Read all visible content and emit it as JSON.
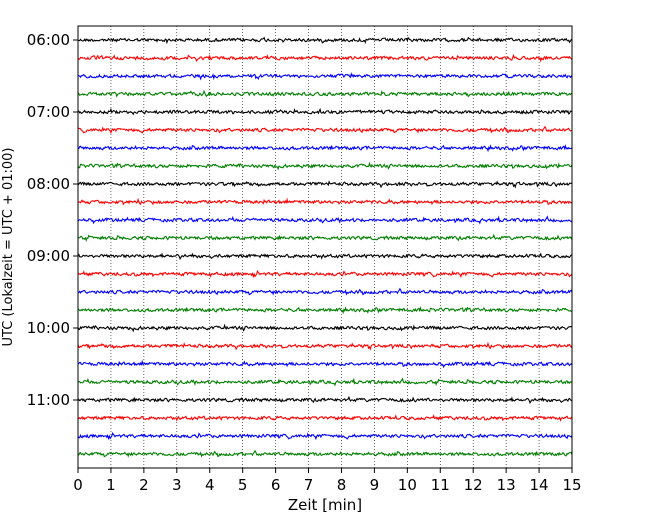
{
  "chart_data": {
    "type": "line",
    "title": "",
    "xlabel": "Zeit  [min]",
    "ylabel": "UTC (Lokalzeit = UTC + 01:00)",
    "xlim": [
      0,
      15
    ],
    "x_ticks": [
      "0",
      "1",
      "2",
      "3",
      "4",
      "5",
      "6",
      "7",
      "8",
      "9",
      "10",
      "11",
      "12",
      "13",
      "14",
      "15"
    ],
    "y_ticks": [
      {
        "label": "06:00",
        "trace_index": 0
      },
      {
        "label": "07:00",
        "trace_index": 4
      },
      {
        "label": "08:00",
        "trace_index": 8
      },
      {
        "label": "09:00",
        "trace_index": 12
      },
      {
        "label": "10:00",
        "trace_index": 16
      },
      {
        "label": "11:00",
        "trace_index": 20
      }
    ],
    "vertical_grid": true,
    "trace_interval_min": 15,
    "trace_count": 24,
    "trace_colors": [
      "#000000",
      "#ff0000",
      "#0000ff",
      "#007f00"
    ],
    "traces": [
      {
        "start": "06:00"
      },
      {
        "start": "06:15"
      },
      {
        "start": "06:30"
      },
      {
        "start": "06:45"
      },
      {
        "start": "07:00"
      },
      {
        "start": "07:15"
      },
      {
        "start": "07:30"
      },
      {
        "start": "07:45"
      },
      {
        "start": "08:00"
      },
      {
        "start": "08:15"
      },
      {
        "start": "08:30"
      },
      {
        "start": "08:45"
      },
      {
        "start": "09:00"
      },
      {
        "start": "09:15"
      },
      {
        "start": "09:30"
      },
      {
        "start": "09:45"
      },
      {
        "start": "10:00"
      },
      {
        "start": "10:15"
      },
      {
        "start": "10:30"
      },
      {
        "start": "10:45"
      },
      {
        "start": "11:00"
      },
      {
        "start": "11:15"
      },
      {
        "start": "11:30"
      },
      {
        "start": "11:45"
      }
    ]
  }
}
